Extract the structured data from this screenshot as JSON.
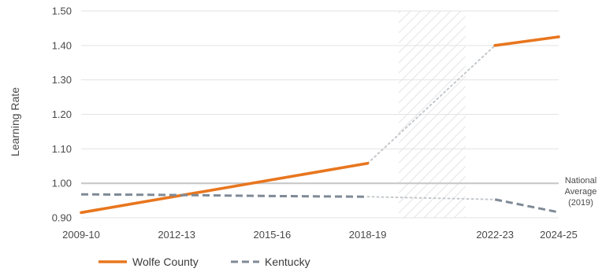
{
  "chart_data": {
    "type": "line",
    "ylabel": "Learning Rate",
    "ylim": [
      0.9,
      1.5
    ],
    "y_ticks": [
      "0.90",
      "1.00",
      "1.10",
      "1.20",
      "1.30",
      "1.40",
      "1.50"
    ],
    "x_ticks": [
      "2009-10",
      "2012-13",
      "2015-16",
      "2018-19",
      "2022-23",
      "2024-25"
    ],
    "grid": "horizontal",
    "reference_line": {
      "y": 1.0,
      "label_lines": [
        "National",
        "Average",
        "(2019)"
      ],
      "color": "#c8c8c8"
    },
    "shaded_gap": {
      "from": "2019-20",
      "to": "2021-22"
    },
    "series": [
      {
        "name": "Wolfe County",
        "color": "#e8761e",
        "style": "solid",
        "segments": [
          [
            {
              "x": "2009-10",
              "y": 0.915
            },
            {
              "x": "2018-19",
              "y": 1.058
            }
          ],
          [
            {
              "x": "2022-23",
              "y": 1.4
            },
            {
              "x": "2024-25",
              "y": 1.425
            }
          ]
        ],
        "gap_connector": [
          {
            "x": "2018-19",
            "y": 1.058
          },
          {
            "x": "2022-23",
            "y": 1.4
          }
        ]
      },
      {
        "name": "Kentucky",
        "color": "#7f8a96",
        "style": "dashed",
        "segments": [
          [
            {
              "x": "2009-10",
              "y": 0.968
            },
            {
              "x": "2012-13",
              "y": 0.966
            },
            {
              "x": "2015-16",
              "y": 0.963
            },
            {
              "x": "2018-19",
              "y": 0.961
            }
          ],
          [
            {
              "x": "2022-23",
              "y": 0.953
            },
            {
              "x": "2024-25",
              "y": 0.916
            }
          ]
        ],
        "gap_connector": [
          {
            "x": "2018-19",
            "y": 0.961
          },
          {
            "x": "2022-23",
            "y": 0.953
          }
        ]
      }
    ],
    "legend": {
      "placement": "bottom-left"
    },
    "colors": {
      "grid": "#e3e3e3",
      "gap_hatch": "#d9d9d9",
      "connector": "#c4c8cc",
      "axis_text": "#4a4a4a"
    }
  }
}
